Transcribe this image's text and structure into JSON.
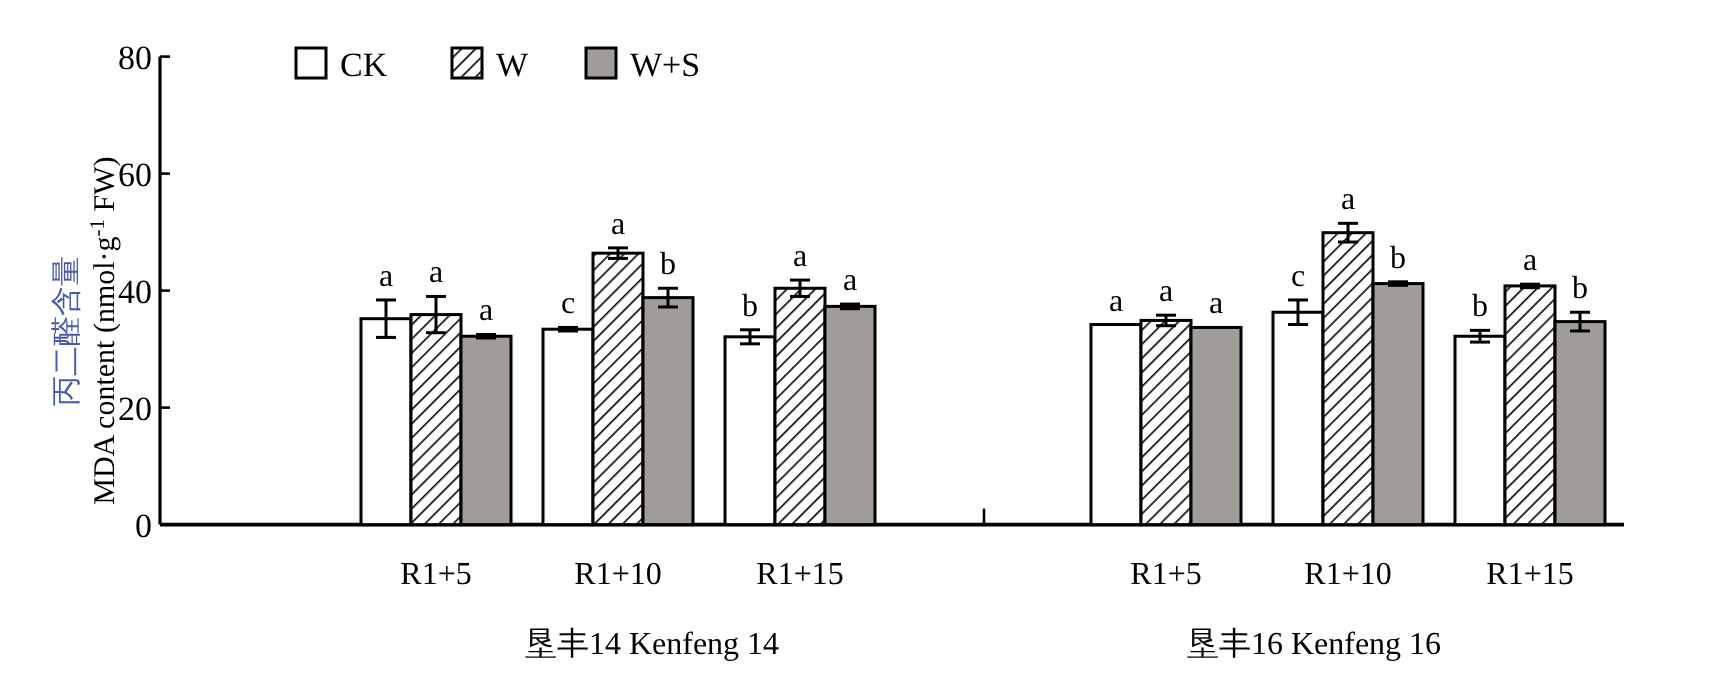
{
  "chart_data": [
    {
      "type": "bar",
      "ylabel": "丙二醛含量\nMDA content (nmol·g$^{-1}$ FW)",
      "xlabel": "垦丰14 Kenfeng 14",
      "categories": [
        "R1+5",
        "R1+10",
        "R1+15"
      ],
      "ylim": [
        0,
        80
      ],
      "yticks": [
        0,
        20,
        40,
        60,
        80
      ],
      "legend": "top left",
      "grid": false,
      "series": [
        {
          "name": "CK",
          "color": "#ffffff",
          "values": [
            35.2,
            33.4,
            32.1
          ],
          "errors": [
            3.2,
            0.3,
            1.2
          ],
          "value_labels": [
            "a",
            "c",
            "b"
          ]
        },
        {
          "name": "W",
          "color": "#000000",
          "values": [
            35.9,
            46.4,
            40.4
          ],
          "errors": [
            3.1,
            0.9,
            1.4
          ],
          "value_labels": [
            "a",
            "a",
            "a"
          ]
        },
        {
          "name": "W+S",
          "color": "#a09c98",
          "values": [
            32.2,
            38.8,
            37.3
          ],
          "errors": [
            0.3,
            1.6,
            0.4
          ],
          "value_labels": [
            "a",
            "b",
            "a"
          ]
        }
      ]
    },
    {
      "type": "bar",
      "xlabel": "垦丰16 Kenfeng 16",
      "categories": [
        "R1+5",
        "R1+10",
        "R1+15"
      ],
      "ylim": [
        0,
        80
      ],
      "tick_labels": "x",
      "grid": false,
      "series": [
        {
          "color": "#ffffff",
          "values": [
            34.2,
            36.3,
            32.2
          ],
          "errors": [
            null,
            2.1,
            1.0
          ],
          "value_labels": [
            "a",
            "c",
            "b"
          ]
        },
        {
          "color": "#000000",
          "values": [
            34.9,
            49.9,
            40.8
          ],
          "errors": [
            0.9,
            1.6,
            0.3
          ],
          "value_labels": [
            "a",
            "a",
            "a"
          ]
        },
        {
          "color": "#a09c98",
          "values": [
            33.7,
            41.2,
            34.7
          ],
          "errors": [
            null,
            0.3,
            1.6
          ],
          "value_labels": [
            "a",
            "b",
            "b"
          ]
        }
      ]
    }
  ]
}
